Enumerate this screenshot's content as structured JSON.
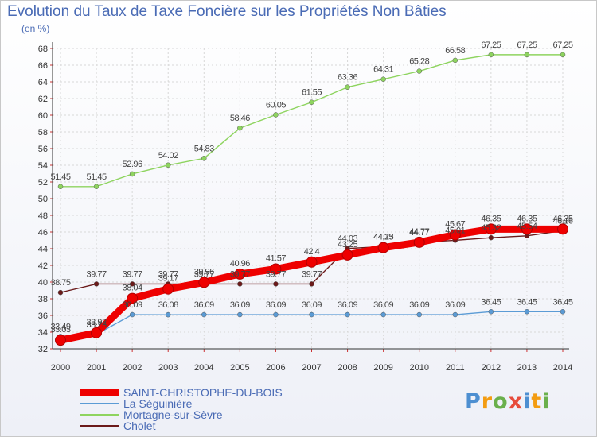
{
  "title": "Evolution du Taux de Taxe Foncière sur les Propriétés Non Bâties",
  "subtitle": "(en %)",
  "logo": {
    "text": "Proxiti",
    "letters": [
      "P",
      "r",
      "o",
      "x",
      "i",
      "t",
      "i"
    ],
    "colors": [
      "#4d8fd1",
      "#f39c12",
      "#6ab04c",
      "#e74c3c",
      "#4d8fd1",
      "#f39c12",
      "#6ab04c"
    ]
  },
  "chart_data": {
    "type": "line",
    "x": [
      "2000",
      "2001",
      "2002",
      "2003",
      "2004",
      "2005",
      "2006",
      "2007",
      "2008",
      "2009",
      "2010",
      "2011",
      "2012",
      "2013",
      "2014"
    ],
    "ylim": [
      32,
      68
    ],
    "yticks": [
      32,
      34,
      36,
      38,
      40,
      42,
      44,
      46,
      48,
      50,
      52,
      54,
      56,
      58,
      60,
      62,
      64,
      66,
      68
    ],
    "grid": true,
    "legend_position": "bottom-left",
    "series": [
      {
        "name": "Mortagne-sur-Sèvre",
        "color": "#8ed45f",
        "values": [
          51.45,
          51.45,
          52.96,
          54.02,
          54.83,
          58.46,
          60.05,
          61.55,
          63.36,
          64.31,
          65.28,
          66.58,
          67.25,
          67.25,
          67.25
        ],
        "labels": [
          "51.45",
          "51.45",
          "52.96",
          "54.02",
          "54.83",
          "58.46",
          "60.05",
          "61.55",
          "63.36",
          "64.31",
          "65.28",
          "66.58",
          "67.25",
          "67.25",
          "67.25"
        ]
      },
      {
        "name": "La Séguinière",
        "color": "#5b9bd5",
        "values": [
          33.49,
          33.73,
          36.09,
          36.08,
          36.09,
          36.09,
          36.09,
          36.09,
          36.09,
          36.09,
          36.09,
          36.09,
          36.45,
          36.45,
          36.45
        ],
        "labels": [
          "33.49",
          "33.73",
          "36.09",
          "36.08",
          "36.09",
          "36.09",
          "36.09",
          "36.09",
          "36.09",
          "36.09",
          "36.09",
          "36.09",
          "36.45",
          "36.45",
          "36.45"
        ]
      },
      {
        "name": "Cholet",
        "color": "#6b1a1a",
        "values": [
          38.75,
          39.77,
          39.77,
          39.77,
          39.77,
          39.77,
          39.77,
          39.77,
          44.03,
          44.25,
          44.77,
          45.01,
          45.32,
          45.54,
          46.16
        ],
        "labels": [
          "38.75",
          "39.77",
          "39.77",
          "39.77",
          "39.77",
          "39.77",
          "39.77",
          "39.77",
          "44.03",
          "44.25",
          "44.77",
          "45.01",
          "45.32",
          "45.54",
          "46.16"
        ]
      },
      {
        "name": "SAINT-CHRISTOPHE-DU-BOIS",
        "color": "#ee0000",
        "values": [
          33.03,
          33.92,
          38.04,
          39.17,
          39.96,
          40.96,
          41.57,
          42.4,
          43.25,
          44.13,
          44.77,
          45.67,
          46.35,
          46.35,
          46.35
        ],
        "labels": [
          "33.03",
          "33.92",
          "38.04",
          "39.17",
          "39.96",
          "40.96",
          "41.57",
          "42.4",
          "43.25",
          "44.13",
          "44.77",
          "45.67",
          "46.35",
          "46.35",
          "46.35"
        ]
      }
    ],
    "legend": [
      {
        "name": "SAINT-CHRISTOPHE-DU-BOIS",
        "color": "#ee0000"
      },
      {
        "name": "La Séguinière",
        "color": "#5b9bd5"
      },
      {
        "name": "Mortagne-sur-Sèvre",
        "color": "#8ed45f"
      },
      {
        "name": "Cholet",
        "color": "#6b1a1a"
      }
    ]
  }
}
